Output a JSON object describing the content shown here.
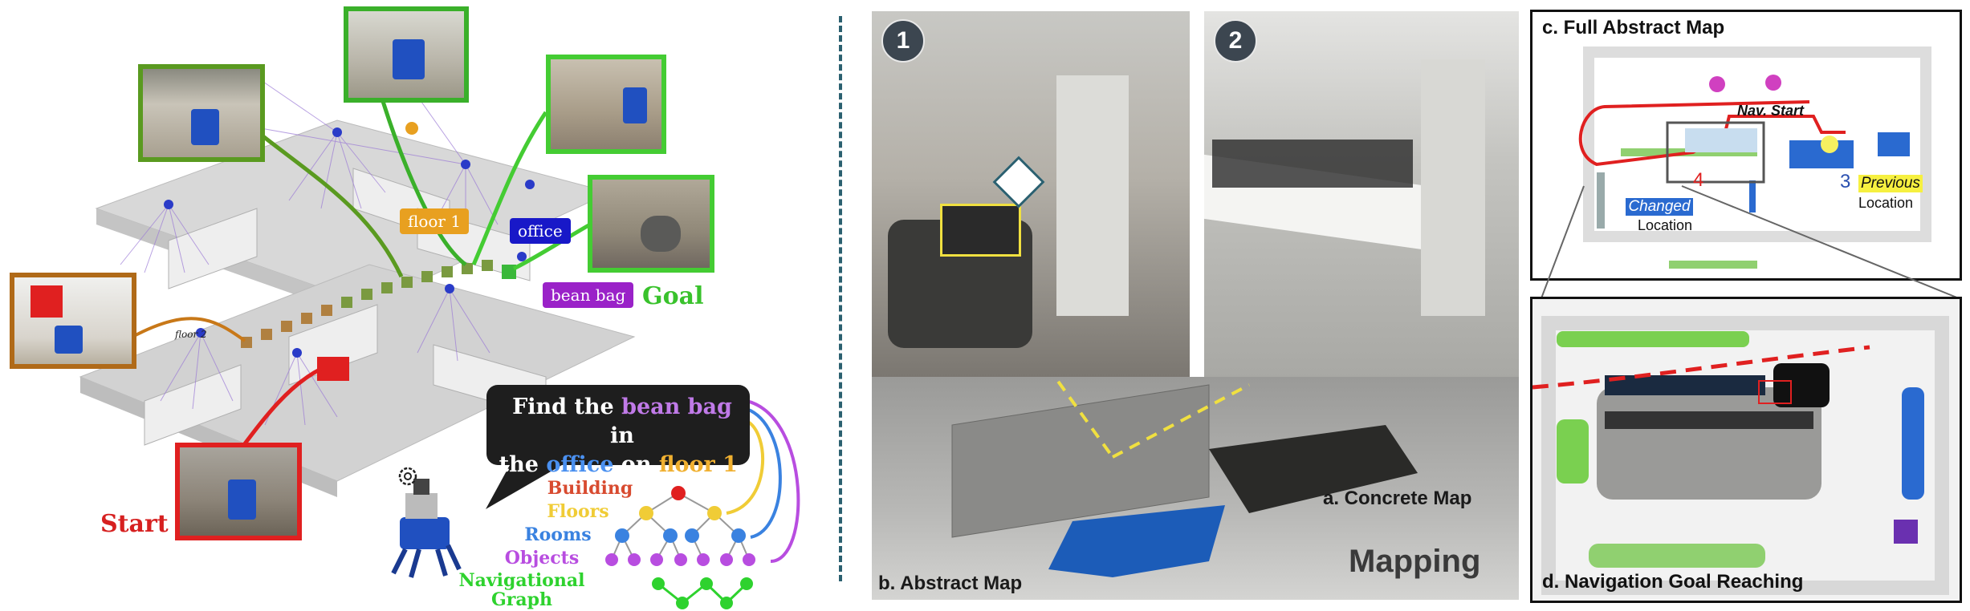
{
  "left": {
    "tags": {
      "floor": "floor 1",
      "office": "office",
      "bean_bag": "bean bag",
      "floor2": "floor 2"
    },
    "goal_label": "Goal",
    "start_label": "Start",
    "speech": {
      "p1": "Find the ",
      "obj": "bean bag",
      "p2": " in",
      "p3": "the ",
      "room": "office",
      "p4": " on ",
      "floor": "floor 1",
      "p5": "."
    },
    "hierarchy": {
      "building": "Building",
      "floors": "Floors",
      "rooms": "Rooms",
      "objects": "Objects",
      "nav1": "Navigational",
      "nav2": "Graph"
    },
    "colors": {
      "goal": "#39c22c",
      "start": "#d62020",
      "floor": "#e8a020",
      "office": "#1818c8",
      "bean_bag": "#9a22c8",
      "building": "#d84b30",
      "floors": "#f0cc36",
      "rooms": "#3a82e0",
      "objects": "#b84de0",
      "nav": "#2ed22e"
    }
  },
  "right": {
    "step1": "1",
    "step2": "2",
    "full_map_title": "c. Full Abstract Map",
    "nav_start": "Nav. Start",
    "changed": "Changed",
    "changed_num": "4",
    "location1": "Location",
    "previous_num": "3",
    "previous": "Previous",
    "location2": "Location",
    "goal_reaching": "d. Navigation Goal Reaching",
    "concrete_map": "a. Concrete Map",
    "abstract_map": "b. Abstract Map",
    "mapping": "Mapping"
  }
}
